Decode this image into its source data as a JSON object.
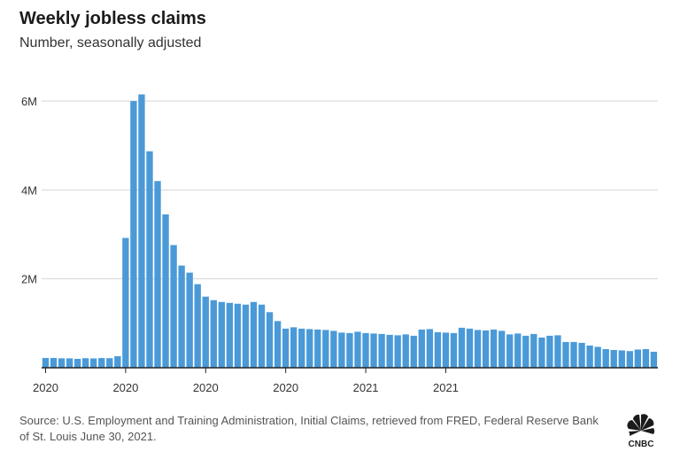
{
  "header": {
    "title": "Weekly jobless claims",
    "subtitle": "Number, seasonally adjusted"
  },
  "footer": {
    "source": "Source: U.S. Employment and Training Administration, Initial Claims, retrieved from FRED, Federal Reserve Bank of St. Louis June 30, 2021."
  },
  "logo": {
    "text": "CNBC"
  },
  "colors": {
    "bar": "#4a9ad8",
    "grid": "#d6d6d6",
    "axis": "#222222"
  },
  "chart_data": {
    "type": "bar",
    "title": "Weekly jobless claims",
    "subtitle": "Number, seasonally adjusted",
    "xlabel": "",
    "ylabel": "",
    "ylim": [
      0,
      6200000
    ],
    "yticks": [
      {
        "value": 2000000,
        "label": "2M"
      },
      {
        "value": 4000000,
        "label": "4M"
      },
      {
        "value": 6000000,
        "label": "6M"
      }
    ],
    "xtick_labels": [
      {
        "index": 0,
        "label": "2020"
      },
      {
        "index": 10,
        "label": "2020"
      },
      {
        "index": 20,
        "label": "2020"
      },
      {
        "index": 30,
        "label": "2020"
      },
      {
        "index": 40,
        "label": "2021"
      },
      {
        "index": 50,
        "label": "2021"
      }
    ],
    "grid": true,
    "legend": "none",
    "values": [
      220000,
      220000,
      212000,
      211000,
      200000,
      215000,
      210000,
      218000,
      215000,
      260000,
      2920000,
      6000000,
      6150000,
      4870000,
      4200000,
      3450000,
      2760000,
      2300000,
      2140000,
      1880000,
      1600000,
      1520000,
      1480000,
      1460000,
      1440000,
      1420000,
      1480000,
      1420000,
      1250000,
      1050000,
      880000,
      910000,
      880000,
      870000,
      860000,
      850000,
      830000,
      790000,
      780000,
      810000,
      780000,
      770000,
      760000,
      740000,
      730000,
      750000,
      720000,
      860000,
      870000,
      800000,
      790000,
      780000,
      900000,
      880000,
      850000,
      840000,
      860000,
      830000,
      750000,
      770000,
      720000,
      760000,
      680000,
      720000,
      730000,
      580000,
      580000,
      560000,
      500000,
      470000,
      420000,
      400000,
      390000,
      375000,
      410000,
      420000,
      360000
    ]
  }
}
